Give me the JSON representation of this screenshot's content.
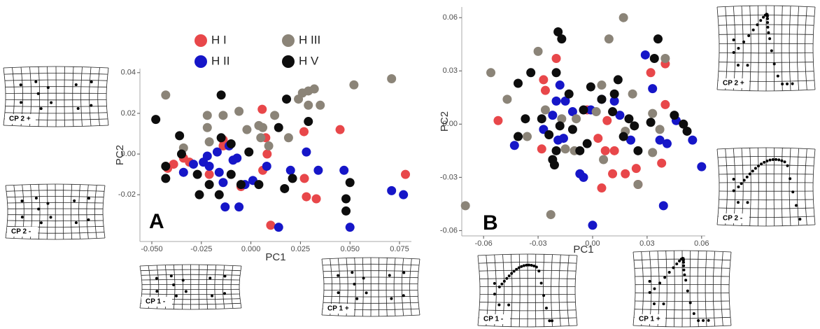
{
  "chart_data": [
    {
      "type": "scatter",
      "panel_label": "A",
      "x_label": "PC1",
      "y_label": "PC2",
      "legend": "top",
      "xlim": [
        -0.056,
        0.081
      ],
      "ylim": [
        -0.043,
        0.042
      ],
      "xticks": [
        {
          "value": -0.05,
          "label": "-0.050"
        },
        {
          "value": -0.025,
          "label": "-0.025"
        },
        {
          "value": 0,
          "label": "0.000"
        },
        {
          "value": 0.025,
          "label": "0.025"
        },
        {
          "value": 0.05,
          "label": "0.050"
        },
        {
          "value": 0.075,
          "label": "0.075"
        }
      ],
      "yticks": [
        0.04,
        0.02,
        {
          "value": 0,
          "label": "0.00"
        },
        -0.02
      ],
      "grid_labels": [
        "CP 2 +",
        "CP 2 -",
        "CP 1 -",
        "CP 1 +"
      ],
      "series": [
        {
          "name": "H I",
          "color": "#e8474a",
          "x": [
            0.0057,
            0.0082,
            0.0075,
            0.0268,
            0.045,
            0.078,
            -0.039,
            -0.042,
            -0.034,
            -0.031,
            -0.021,
            -0.014,
            -0.014,
            0.027,
            0.028,
            0.033,
            0.01,
            -0.005,
            0.006
          ],
          "values": [
            0.022,
            0.0,
            0.008,
            0.011,
            0.012,
            -0.01,
            -0.005,
            -0.007,
            -0.002,
            -0.004,
            -0.01,
            0.007,
            0.004,
            -0.012,
            -0.021,
            -0.022,
            -0.035,
            -0.016,
            -0.008
          ]
        },
        {
          "name": "H II",
          "color": "#1616c8",
          "x": [
            -0.034,
            -0.029,
            -0.024,
            -0.022,
            -0.021,
            -0.016,
            -0.014,
            -0.011,
            -0.007,
            -0.003,
            0.001,
            0.008,
            0.02,
            0.028,
            0.034,
            0.047,
            0.05,
            0.071,
            0.077,
            0.014,
            -0.013,
            -0.006,
            -0.017,
            -0.009
          ],
          "values": [
            -0.009,
            -0.005,
            -0.004,
            -0.001,
            -0.006,
            -0.009,
            -0.014,
            0.004,
            -0.002,
            -0.015,
            -0.013,
            -0.006,
            -0.008,
            0.001,
            -0.008,
            -0.008,
            -0.036,
            -0.018,
            -0.02,
            -0.036,
            -0.026,
            -0.026,
            0.001,
            -0.003
          ]
        },
        {
          "name": "H III",
          "color": "#8b8478",
          "x": [
            -0.043,
            -0.022,
            -0.022,
            -0.034,
            -0.014,
            -0.006,
            -0.002,
            0.004,
            0.006,
            0.005,
            0.009,
            0.012,
            0.019,
            0.024,
            0.026,
            0.029,
            0.032,
            0.035,
            0.052,
            0.071,
            0.029,
            -0.021
          ],
          "values": [
            0.029,
            0.019,
            0.013,
            0.003,
            0.019,
            0.021,
            0.012,
            0.014,
            0.013,
            0.008,
            0.004,
            0.019,
            0.008,
            0.027,
            0.03,
            0.031,
            0.032,
            0.024,
            0.034,
            0.037,
            0.024,
            0.006
          ]
        },
        {
          "name": "H V",
          "color": "#0d0d0d",
          "x": [
            -0.048,
            -0.036,
            -0.043,
            -0.035,
            -0.027,
            -0.026,
            -0.021,
            -0.016,
            -0.015,
            -0.01,
            -0.005,
            -0.001,
            0.004,
            -0.015,
            0.014,
            0.018,
            0.017,
            0.021,
            0.029,
            0.048,
            0.048,
            0.05,
            -0.01,
            -0.043
          ],
          "values": [
            0.017,
            0.009,
            -0.012,
            0.0,
            -0.01,
            -0.02,
            -0.015,
            -0.02,
            0.008,
            0.005,
            -0.015,
            0.001,
            -0.015,
            0.029,
            0.013,
            0.027,
            -0.017,
            -0.012,
            0.016,
            -0.022,
            -0.028,
            -0.014,
            -0.01,
            -0.006
          ]
        }
      ]
    },
    {
      "type": "scatter",
      "panel_label": "B",
      "x_label": "PC1",
      "y_label": "PC2",
      "xlim": [
        -0.072,
        0.062
      ],
      "ylim": [
        -0.063,
        0.066
      ],
      "xticks": [
        -0.06,
        -0.03,
        {
          "value": 0,
          "label": "0.00"
        },
        0.03,
        0.06
      ],
      "yticks": [
        0.06,
        0.03,
        {
          "value": 0,
          "label": "0.00"
        },
        -0.03,
        -0.06
      ],
      "grid_labels": [
        "CP 2 +",
        "CP 2 -",
        "CP 1 -",
        "CP 1 +"
      ],
      "series": [
        {
          "color": "#e8474a",
          "x": [
            -0.052,
            -0.027,
            -0.02,
            -0.026,
            -0.003,
            0.003,
            0.007,
            0.008,
            0.012,
            0.011,
            0.018,
            0.024,
            0.025,
            0.032,
            0.04,
            0.04,
            0.005,
            0.038,
            -0.028
          ],
          "values": [
            0.002,
            0.025,
            0.037,
            0.019,
            0.008,
            -0.008,
            -0.015,
            0.002,
            -0.015,
            -0.028,
            -0.028,
            -0.025,
            -0.034,
            0.029,
            0.011,
            0.034,
            -0.036,
            -0.022,
            -0.014
          ]
        },
        {
          "color": "#1616c8",
          "x": [
            -0.043,
            -0.027,
            -0.022,
            -0.02,
            -0.019,
            -0.018,
            -0.015,
            -0.011,
            -0.007,
            -0.005,
            0.0,
            -0.001,
            0.005,
            0.012,
            0.015,
            0.021,
            0.029,
            0.033,
            0.037,
            0.041,
            0.046,
            0.055,
            0.06,
            0.039,
            -0.016
          ],
          "values": [
            -0.012,
            -0.003,
            0.005,
            0.013,
            -0.009,
            0.022,
            0.013,
            0.007,
            -0.028,
            -0.03,
            -0.057,
            0.008,
            0.014,
            0.013,
            0.005,
            -0.009,
            0.039,
            0.02,
            -0.009,
            -0.011,
            0.002,
            -0.009,
            -0.024,
            -0.046,
            -0.008
          ]
        },
        {
          "color": "#8b8478",
          "x": [
            -0.07,
            -0.056,
            -0.047,
            -0.036,
            -0.03,
            -0.026,
            -0.017,
            -0.015,
            -0.01,
            -0.009,
            0.002,
            0.005,
            0.006,
            0.009,
            0.017,
            0.018,
            0.022,
            0.025,
            0.033,
            0.033,
            0.037,
            0.04,
            -0.023
          ],
          "values": [
            -0.046,
            0.029,
            0.014,
            -0.007,
            0.041,
            0.008,
            0.003,
            -0.014,
            -0.015,
            0.003,
            0.007,
            0.022,
            -0.02,
            0.048,
            0.06,
            -0.004,
            0.017,
            -0.034,
            -0.016,
            0.006,
            -0.003,
            0.037,
            -0.051
          ]
        },
        {
          "color": "#0d0d0d",
          "x": [
            -0.041,
            -0.034,
            -0.041,
            -0.037,
            -0.028,
            -0.022,
            -0.02,
            -0.024,
            -0.019,
            -0.017,
            -0.02,
            -0.018,
            -0.013,
            -0.011,
            -0.005,
            -0.003,
            -0.001,
            0.005,
            0.012,
            0.011,
            0.014,
            0.017,
            0.02,
            0.023,
            0.025,
            0.032,
            0.036,
            0.034,
            0.045,
            0.05,
            0.052,
            -0.007,
            -0.021
          ],
          "values": [
            0.023,
            0.029,
            -0.007,
            0.003,
            0.003,
            -0.02,
            -0.015,
            -0.006,
            0.052,
            0.048,
            0.029,
            -0.001,
            0.017,
            -0.003,
            0.008,
            -0.011,
            0.021,
            0.014,
            0.017,
            0.007,
            0.025,
            -0.007,
            0.003,
            -0.001,
            -0.015,
            0.001,
            0.048,
            0.037,
            0.005,
            0.0,
            -0.004,
            -0.015,
            -0.023
          ]
        }
      ]
    }
  ]
}
